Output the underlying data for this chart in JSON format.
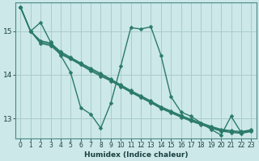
{
  "xlabel": "Humidex (Indice chaleur)",
  "bg_color": "#cce8e8",
  "grid_color": "#aacccc",
  "line_color": "#2a7a6a",
  "markersize": 2.5,
  "linewidth": 1.0,
  "xlim": [
    -0.5,
    23.5
  ],
  "ylim": [
    12.55,
    15.65
  ],
  "yticks": [
    13,
    14,
    15
  ],
  "xticks": [
    0,
    1,
    2,
    3,
    4,
    5,
    6,
    7,
    8,
    9,
    10,
    11,
    12,
    13,
    14,
    15,
    16,
    17,
    18,
    19,
    20,
    21,
    22,
    23
  ],
  "series": [
    [
      15.55,
      15.0,
      15.2,
      14.75,
      14.45,
      14.05,
      13.25,
      13.1,
      12.78,
      13.35,
      14.2,
      15.08,
      15.05,
      15.1,
      14.45,
      13.5,
      13.15,
      13.05,
      12.9,
      12.75,
      12.62,
      13.05,
      12.68,
      12.72
    ],
    [
      15.55,
      15.0,
      14.75,
      14.7,
      14.5,
      14.38,
      14.25,
      14.12,
      14.0,
      13.88,
      13.75,
      13.62,
      13.5,
      13.38,
      13.25,
      13.15,
      13.05,
      12.96,
      12.88,
      12.8,
      12.73,
      12.7,
      12.68,
      12.72
    ],
    [
      15.55,
      15.0,
      14.78,
      14.73,
      14.53,
      14.4,
      14.27,
      14.15,
      14.03,
      13.9,
      13.77,
      13.64,
      13.52,
      13.4,
      13.27,
      13.17,
      13.07,
      12.98,
      12.9,
      12.82,
      12.75,
      12.72,
      12.7,
      12.74
    ],
    [
      15.55,
      15.0,
      14.72,
      14.67,
      14.47,
      14.36,
      14.23,
      14.09,
      13.97,
      13.86,
      13.73,
      13.6,
      13.48,
      13.36,
      13.23,
      13.13,
      13.03,
      12.94,
      12.86,
      12.78,
      12.71,
      12.68,
      12.66,
      12.7
    ]
  ]
}
